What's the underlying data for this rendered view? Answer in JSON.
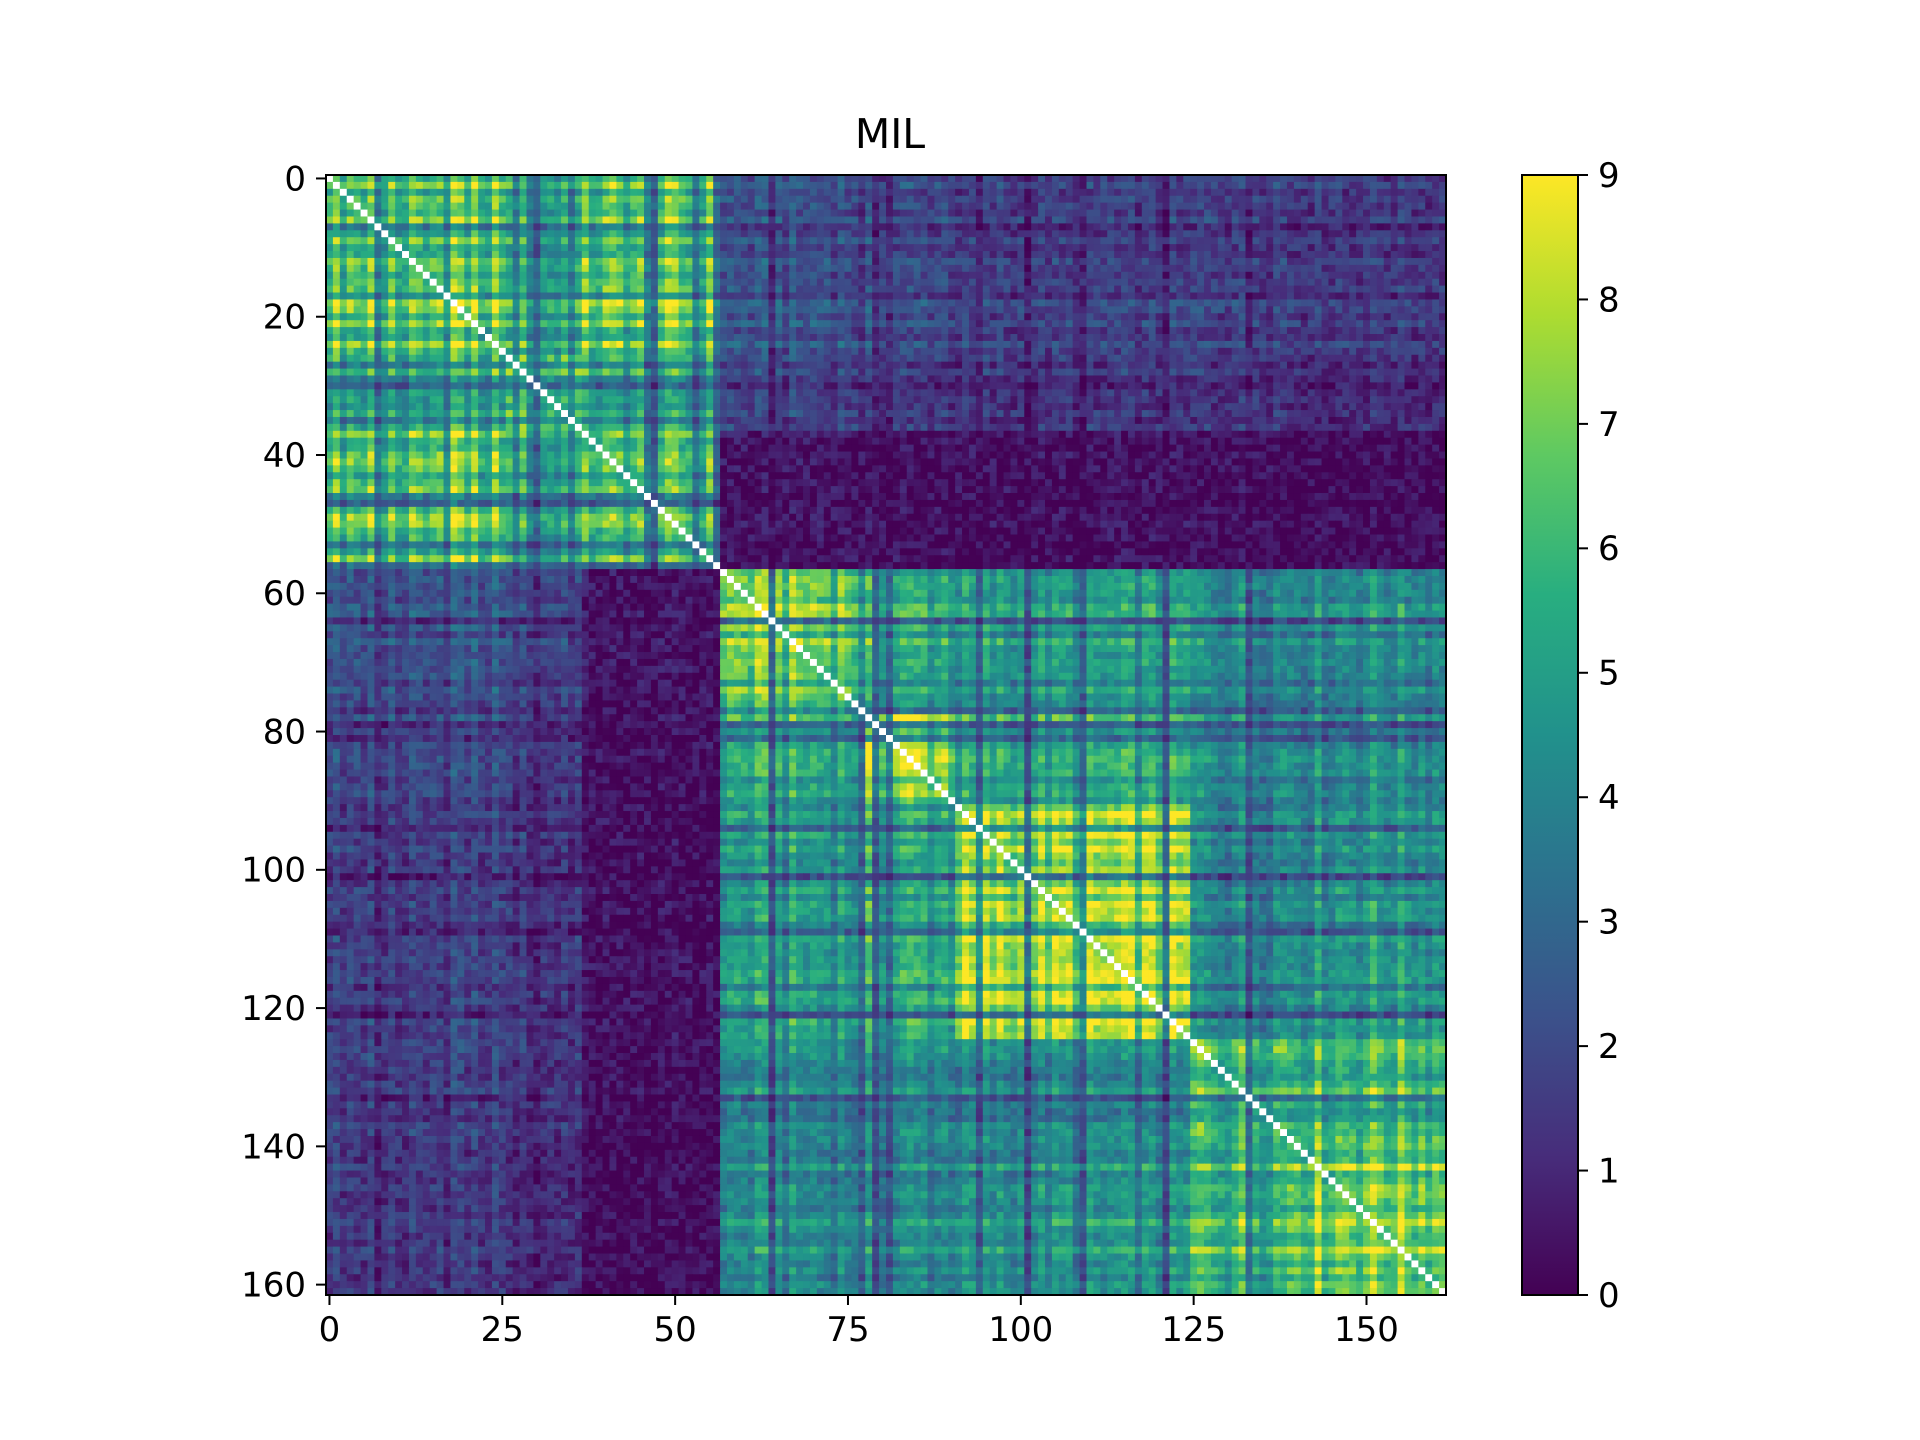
{
  "chart_data": {
    "type": "heatmap",
    "title": "MIL",
    "xlabel": "",
    "ylabel": "",
    "n": 162,
    "x_range": [
      0,
      161
    ],
    "y_range": [
      0,
      161
    ],
    "x_ticks": [
      0,
      25,
      50,
      75,
      100,
      125,
      150
    ],
    "y_ticks": [
      0,
      20,
      40,
      60,
      80,
      100,
      120,
      140,
      160
    ],
    "y_axis_inverted": true,
    "diagonal_value": null,
    "diagonal_color": "#ffffff",
    "colormap": "viridis",
    "color_range": [
      0,
      9
    ],
    "colorbar_ticks": [
      0,
      1,
      2,
      3,
      4,
      5,
      6,
      7,
      8,
      9
    ],
    "grid": false,
    "block_boundaries": [
      0,
      26,
      37,
      57,
      78,
      91,
      125,
      139,
      162
    ],
    "block_mean_values": [
      [
        7.6,
        5.8,
        7.0,
        2.5,
        2.2,
        1.8,
        2.0,
        1.7
      ],
      [
        5.8,
        6.5,
        5.4,
        2.0,
        1.7,
        1.5,
        1.6,
        1.3
      ],
      [
        7.0,
        5.4,
        6.2,
        0.5,
        0.4,
        0.4,
        0.3,
        0.2
      ],
      [
        2.5,
        2.0,
        0.5,
        7.0,
        5.5,
        4.8,
        4.4,
        4.5
      ],
      [
        2.2,
        1.7,
        0.4,
        5.5,
        7.6,
        5.3,
        4.6,
        4.6
      ],
      [
        1.8,
        1.5,
        0.4,
        4.8,
        5.3,
        7.3,
        4.2,
        4.7
      ],
      [
        2.0,
        1.6,
        0.3,
        4.4,
        4.6,
        4.2,
        6.7,
        6.6
      ],
      [
        1.7,
        1.3,
        0.2,
        4.5,
        4.6,
        4.7,
        6.6,
        7.8
      ]
    ]
  }
}
